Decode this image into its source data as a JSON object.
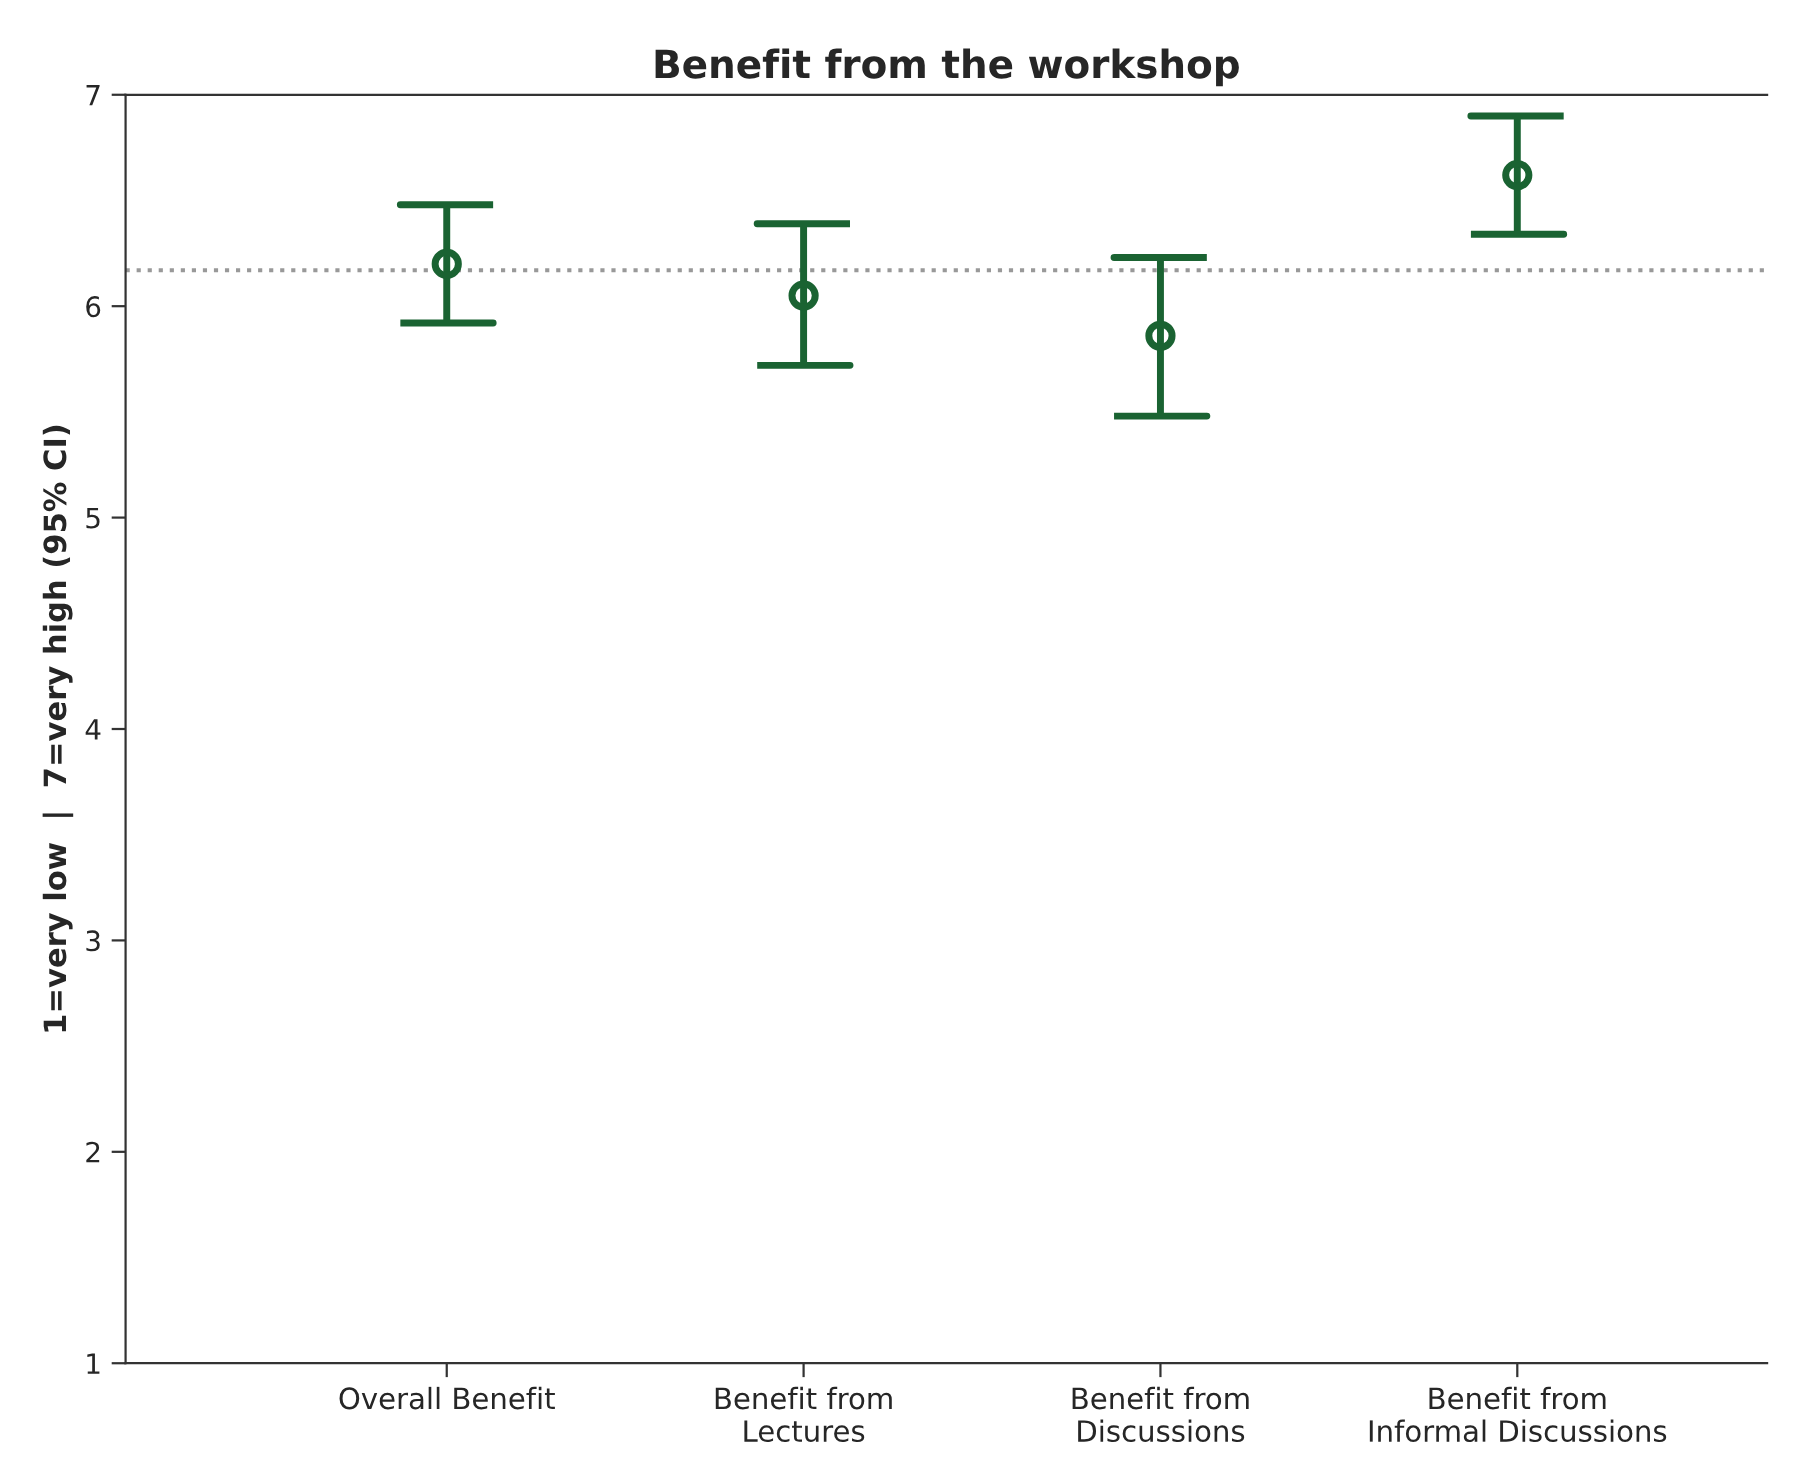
{
  "chart_data": {
    "type": "scatter",
    "title": "Benefit from the workshop",
    "ylabel": "1=very low  |  7=very high (95% CI)",
    "categories": [
      "Overall Benefit",
      "Benefit from\nLectures",
      "Benefit from\nDiscussions",
      "Benefit from\nInformal Discussions"
    ],
    "values": [
      6.2,
      6.05,
      5.86,
      6.62
    ],
    "errors": [
      [
        5.92,
        6.48
      ],
      [
        5.72,
        6.39
      ],
      [
        5.48,
        6.23
      ],
      [
        6.34,
        6.9
      ]
    ],
    "color": "#1a6332",
    "ylim": [
      1,
      7
    ],
    "yticks": [
      1,
      2,
      3,
      4,
      5,
      6,
      7
    ],
    "grid": false,
    "legend": false,
    "marker": "circle",
    "ref_lines": [
      {
        "axis": "y",
        "value": 6.17,
        "color": "#999999",
        "line_style": "dotted"
      }
    ]
  }
}
